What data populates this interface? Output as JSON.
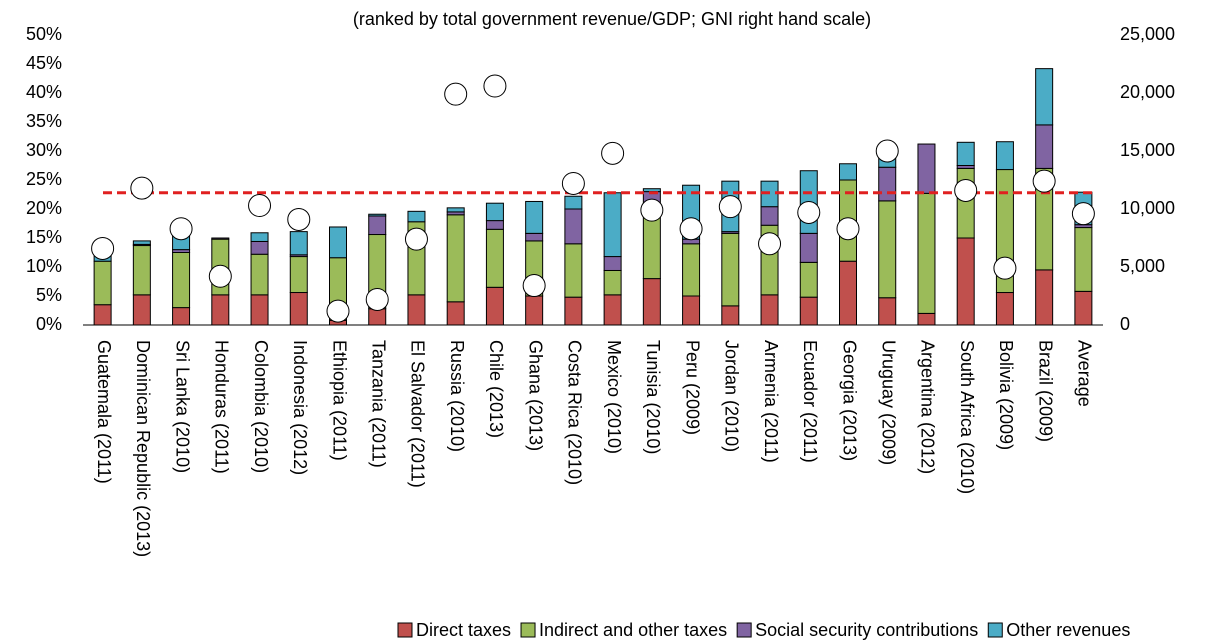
{
  "chart_data": {
    "type": "bar",
    "stacked": true,
    "title": "(ranked by total government revenue/GDP; GNI right hand scale)",
    "categories": [
      "Guatemala (2011)",
      "Dominican Republic (2013)",
      "Sri Lanka (2010)",
      "Honduras (2011)",
      "Colombia (2010)",
      "Indonesia (2012)",
      "Ethiopia (2011)",
      "Tanzania (2011)",
      "El Salvador (2011)",
      "Russia (2010)",
      "Chile (2013)",
      "Ghana (2013)",
      "Costa Rica (2010)",
      "Mexico (2010)",
      "Tunisia (2010)",
      "Peru (2009)",
      "Jordan (2010)",
      "Armenia (2011)",
      "Ecuador (2011)",
      "Georgia (2013)",
      "Uruguay (2009)",
      "Argentina (2012)",
      "South Africa (2010)",
      "Bolivia (2009)",
      "Brazil (2009)",
      "Average"
    ],
    "series": [
      {
        "name": "Direct taxes",
        "color": "#c0504d",
        "values": [
          3.5,
          5.2,
          3,
          5.2,
          5.2,
          5.6,
          0.8,
          2.8,
          5.2,
          4,
          6.5,
          5,
          4.8,
          5.2,
          8,
          5,
          3.3,
          5.2,
          4.8,
          11,
          4.7,
          2,
          15,
          5.6,
          9.5,
          5.8
        ]
      },
      {
        "name": "Indirect and other taxes",
        "color": "#9bbb59",
        "values": [
          7.5,
          8.5,
          9.5,
          9.6,
          7,
          6.2,
          10.8,
          12.8,
          12.6,
          15,
          10,
          9.5,
          9.2,
          4.2,
          12.5,
          9,
          12.5,
          12,
          6,
          14,
          16.7,
          20.7,
          12,
          21.2,
          17.5,
          11
        ]
      },
      {
        "name": "Social security contributions",
        "color": "#8064a2",
        "values": [
          0,
          0.2,
          0.5,
          0.2,
          2.2,
          0.3,
          0,
          3.2,
          0,
          0.5,
          1.5,
          1.3,
          6,
          2.4,
          2.5,
          0.8,
          0.3,
          3.2,
          5,
          0,
          5.8,
          8.5,
          0.5,
          0,
          7.5,
          0.5
        ]
      },
      {
        "name": "Other revenues",
        "color": "#4bacc6",
        "values": [
          1.5,
          0.6,
          2.5,
          0,
          1.5,
          4,
          5.3,
          0.3,
          1.8,
          0.7,
          3,
          5.5,
          2.2,
          11,
          0.5,
          9.3,
          8.7,
          4.4,
          10.8,
          2.8,
          1.8,
          0,
          4,
          4.8,
          9.7,
          5.6
        ]
      }
    ],
    "markers": {
      "axis": "y2",
      "color": "#ffffff",
      "values": [
        6600,
        11800,
        8300,
        4200,
        10300,
        9100,
        1200,
        2200,
        7400,
        19900,
        20600,
        3400,
        12200,
        14800,
        9900,
        8300,
        10200,
        7000,
        9700,
        8300,
        15000,
        null,
        11600,
        4900,
        12400,
        9600
      ]
    },
    "reference_line": {
      "value": 22.8,
      "color": "#e02020"
    },
    "ylim": [
      0,
      50
    ],
    "yticks": [
      {
        "value": 0,
        "label": "0%"
      },
      {
        "value": 5,
        "label": "5%"
      },
      {
        "value": 10,
        "label": "10%"
      },
      {
        "value": 15,
        "label": "15%"
      },
      {
        "value": 20,
        "label": "20%"
      },
      {
        "value": 25,
        "label": "25%"
      },
      {
        "value": 30,
        "label": "30%"
      },
      {
        "value": 35,
        "label": "35%"
      },
      {
        "value": 40,
        "label": "40%"
      },
      {
        "value": 45,
        "label": "45%"
      },
      {
        "value": 50,
        "label": "50%"
      }
    ],
    "y2lim": [
      0,
      25000
    ],
    "y2ticks": [
      0,
      {
        "value": 5000,
        "label": "5,000"
      },
      {
        "value": 10000,
        "label": "10,000"
      },
      {
        "value": 15000,
        "label": "15,000"
      },
      {
        "value": 20000,
        "label": "20,000"
      },
      {
        "value": 25000,
        "label": "25,000"
      }
    ],
    "grid": false
  }
}
